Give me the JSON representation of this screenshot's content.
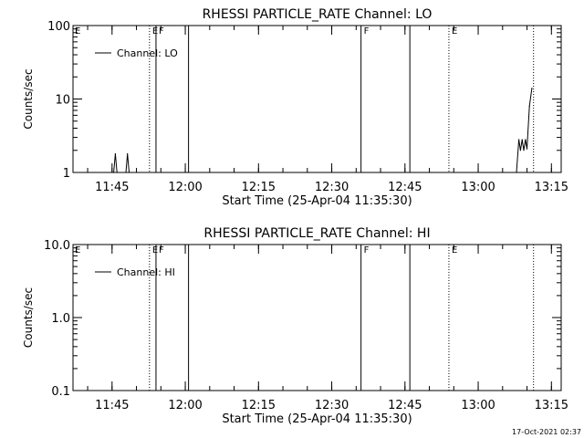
{
  "chart_data": [
    {
      "type": "line",
      "title": "RHESSI PARTICLE_RATE Channel: LO",
      "xlabel": "Start Time (25-Apr-04 11:35:30)",
      "ylabel": "Counts/sec",
      "y_scale": "log",
      "ylim": [
        1,
        100
      ],
      "y_ticks": [
        1,
        10,
        100
      ],
      "y_tick_labels": [
        "1",
        "10",
        "100"
      ],
      "xlim": [
        "11:37",
        "13:17"
      ],
      "x_ticks": [
        "11:45",
        "12:00",
        "12:15",
        "12:30",
        "12:45",
        "13:00",
        "13:15"
      ],
      "legend_position": "top-left",
      "series": [
        {
          "name": "Channel: LO",
          "color": "#000000",
          "points": [
            [
              "11:45:20",
              1.0
            ],
            [
              "11:45:40",
              1.8
            ],
            [
              "11:46:00",
              1.0
            ],
            [
              "11:47:50",
              1.0
            ],
            [
              "11:48:10",
              1.8
            ],
            [
              "11:48:30",
              1.0
            ],
            [
              "13:07:50",
              1.0
            ],
            [
              "13:08:20",
              2.8
            ],
            [
              "13:08:40",
              2.0
            ],
            [
              "13:09:00",
              2.8
            ],
            [
              "13:09:20",
              2.0
            ],
            [
              "13:09:40",
              2.8
            ],
            [
              "13:10:00",
              2.1
            ],
            [
              "13:10:30",
              8.0
            ],
            [
              "13:11:00",
              14.0
            ]
          ]
        }
      ],
      "markers": [
        {
          "time": "11:52:40",
          "style": "dotted",
          "label": "E"
        },
        {
          "time": "11:54:00",
          "style": "solid",
          "label": "F"
        },
        {
          "time": "12:00:40",
          "style": "solid",
          "label": ""
        },
        {
          "time": "12:36:00",
          "style": "solid",
          "label": "F"
        },
        {
          "time": "12:46:00",
          "style": "solid",
          "label": ""
        },
        {
          "time": "12:54:00",
          "style": "dotted",
          "label": "E"
        },
        {
          "time": "13:11:20",
          "style": "dotted",
          "label": ""
        }
      ],
      "corner_label": "E"
    },
    {
      "type": "line",
      "title": "RHESSI PARTICLE_RATE Channel: HI",
      "xlabel": "Start Time (25-Apr-04 11:35:30)",
      "ylabel": "Counts/sec",
      "y_scale": "log",
      "ylim": [
        0.1,
        10
      ],
      "y_ticks": [
        0.1,
        1,
        10
      ],
      "y_tick_labels": [
        "0.1",
        "1.0",
        "10.0"
      ],
      "xlim": [
        "11:37",
        "13:17"
      ],
      "x_ticks": [
        "11:45",
        "12:00",
        "12:15",
        "12:30",
        "12:45",
        "13:00",
        "13:15"
      ],
      "legend_position": "top-left",
      "series": [
        {
          "name": "Channel: HI",
          "color": "#000000",
          "points": []
        }
      ],
      "markers": [
        {
          "time": "11:52:40",
          "style": "dotted",
          "label": "E"
        },
        {
          "time": "11:54:00",
          "style": "solid",
          "label": "F"
        },
        {
          "time": "12:00:40",
          "style": "solid",
          "label": ""
        },
        {
          "time": "12:36:00",
          "style": "solid",
          "label": "F"
        },
        {
          "time": "12:46:00",
          "style": "solid",
          "label": ""
        },
        {
          "time": "12:54:00",
          "style": "dotted",
          "label": "E"
        },
        {
          "time": "13:11:20",
          "style": "dotted",
          "label": ""
        }
      ],
      "corner_label": "E"
    }
  ],
  "footer": {
    "timestamp": "17-Oct-2021 02:37"
  }
}
